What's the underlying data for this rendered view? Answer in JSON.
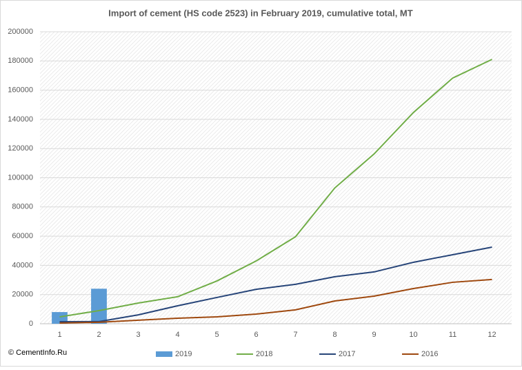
{
  "chart_data": {
    "type": "combo",
    "title": "Import of cement (HS code 2523) in February 2019, cumulative total, MT",
    "source": "© CementInfo.Ru",
    "categories": [
      "1",
      "2",
      "3",
      "4",
      "5",
      "6",
      "7",
      "8",
      "9",
      "10",
      "11",
      "12"
    ],
    "ylim": [
      0,
      200000
    ],
    "yticks": [
      0,
      20000,
      40000,
      60000,
      80000,
      100000,
      120000,
      140000,
      160000,
      180000,
      200000
    ],
    "grid": true,
    "legend": "bottom",
    "series": [
      {
        "name": "2019",
        "type": "bar",
        "color": "#5b9bd5",
        "values": [
          8000,
          24000,
          null,
          null,
          null,
          null,
          null,
          null,
          null,
          null,
          null,
          null
        ]
      },
      {
        "name": "2018",
        "type": "line",
        "color": "#70ad47",
        "values": [
          4700,
          9000,
          14200,
          18500,
          29300,
          43000,
          59600,
          93000,
          116300,
          144700,
          168300,
          181100
        ]
      },
      {
        "name": "2017",
        "type": "line",
        "color": "#264478",
        "values": [
          1400,
          1500,
          6100,
          12300,
          18000,
          23600,
          27000,
          32200,
          35500,
          42100,
          47300,
          52500
        ]
      },
      {
        "name": "2016",
        "type": "line",
        "color": "#9e480e",
        "values": [
          500,
          1000,
          2400,
          3800,
          4700,
          6600,
          9500,
          15600,
          18900,
          24100,
          28400,
          30300
        ]
      }
    ]
  }
}
